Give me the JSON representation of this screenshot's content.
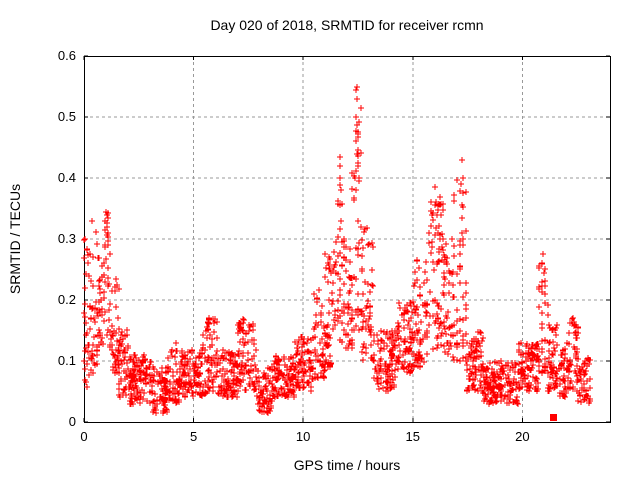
{
  "window": {
    "background": "#ffffff"
  },
  "chart_data": {
    "type": "scatter",
    "title": "Day 020 of 2018, SRMTID for receiver rcmn",
    "xlabel": "GPS time / hours",
    "ylabel": "SRMTID / TECUs",
    "xlim": [
      0,
      24
    ],
    "ylim": [
      0,
      0.6
    ],
    "xticks": {
      "values": [
        0,
        5,
        10,
        15,
        20
      ],
      "labels": [
        "0",
        "5",
        "10",
        "15",
        "20"
      ]
    },
    "yticks": {
      "values": [
        0,
        0.1,
        0.2,
        0.3,
        0.4,
        0.5,
        0.6
      ],
      "labels": [
        "0",
        "0.1",
        "0.2",
        "0.3",
        "0.4",
        "0.5",
        "0.6"
      ]
    },
    "grid": true,
    "legend": false,
    "colors": {
      "marker": "#ff0000",
      "grid": "#999999",
      "border": "#000000",
      "text": "#000000"
    },
    "marker": {
      "shape": "plus",
      "size": 7
    },
    "special_point": {
      "x": 21.4,
      "y": 0.008,
      "shape": "filled-square",
      "size": 7,
      "color": "#ff0000"
    },
    "seed": 20180120,
    "note": "Dense unlabeled scatter (~2200 red '+' samples over 0-23.1 h). density_bands encode the envelope read from the plot as [start_hour, end_hour, ymin_TECU, ymax_TECU, count, low_bias, columns?]; peak_points are the visible extreme samples.",
    "density_bands": [
      [
        0.0,
        0.25,
        0.05,
        0.3,
        28,
        1.2
      ],
      [
        0.25,
        0.6,
        0.08,
        0.32,
        34,
        1.4
      ],
      [
        0.6,
        0.95,
        0.1,
        0.28,
        34,
        1.2
      ],
      [
        0.95,
        1.2,
        0.12,
        0.35,
        26,
        1.1
      ],
      [
        1.2,
        1.6,
        0.08,
        0.24,
        40,
        1.4
      ],
      [
        1.6,
        2.1,
        0.04,
        0.16,
        50,
        1.2
      ],
      [
        2.1,
        3.1,
        0.03,
        0.11,
        100,
        1.1
      ],
      [
        3.1,
        3.8,
        0.015,
        0.09,
        68,
        1.0
      ],
      [
        3.8,
        4.6,
        0.03,
        0.12,
        78,
        1.2
      ],
      [
        4.6,
        5.4,
        0.04,
        0.12,
        78,
        1.1
      ],
      [
        5.4,
        6.1,
        0.045,
        0.17,
        68,
        1.3
      ],
      [
        6.1,
        7.0,
        0.04,
        0.12,
        88,
        1.1
      ],
      [
        7.0,
        7.9,
        0.05,
        0.17,
        88,
        1.3
      ],
      [
        7.9,
        8.6,
        0.015,
        0.09,
        68,
        1.0
      ],
      [
        8.6,
        9.6,
        0.04,
        0.11,
        98,
        1.1
      ],
      [
        9.6,
        10.4,
        0.05,
        0.14,
        78,
        1.1
      ],
      [
        10.4,
        11.0,
        0.07,
        0.22,
        58,
        1.4
      ],
      [
        11.0,
        11.5,
        0.09,
        0.28,
        48,
        1.4
      ],
      [
        11.5,
        11.95,
        0.12,
        0.42,
        44,
        1.6,
        5
      ],
      [
        11.95,
        12.25,
        0.12,
        0.3,
        28,
        1.3
      ],
      [
        12.25,
        12.65,
        0.15,
        0.52,
        38,
        1.6,
        5
      ],
      [
        12.65,
        13.2,
        0.1,
        0.32,
        52,
        1.5
      ],
      [
        13.2,
        14.2,
        0.05,
        0.15,
        98,
        1.1
      ],
      [
        14.2,
        15.0,
        0.08,
        0.2,
        78,
        1.2
      ],
      [
        15.0,
        15.7,
        0.09,
        0.27,
        68,
        1.3
      ],
      [
        15.7,
        16.4,
        0.12,
        0.37,
        68,
        1.2
      ],
      [
        16.4,
        16.9,
        0.1,
        0.3,
        48,
        1.2
      ],
      [
        16.9,
        17.45,
        0.1,
        0.4,
        46,
        1.6,
        4
      ],
      [
        17.45,
        18.2,
        0.05,
        0.15,
        72,
        1.3
      ],
      [
        18.2,
        19.8,
        0.03,
        0.1,
        155,
        1.1
      ],
      [
        19.8,
        20.75,
        0.05,
        0.13,
        92,
        1.1
      ],
      [
        20.75,
        21.15,
        0.08,
        0.26,
        38,
        1.4,
        3
      ],
      [
        21.15,
        21.7,
        0.05,
        0.16,
        52,
        1.2
      ],
      [
        21.7,
        22.1,
        0.04,
        0.13,
        38,
        1.1
      ],
      [
        22.1,
        22.55,
        0.05,
        0.17,
        44,
        1.3
      ],
      [
        22.55,
        23.1,
        0.03,
        0.105,
        48,
        1.2
      ]
    ],
    "peak_points": [
      [
        0.03,
        0.3
      ],
      [
        0.37,
        0.33
      ],
      [
        0.98,
        0.33
      ],
      [
        1.0,
        0.345
      ],
      [
        1.06,
        0.34
      ],
      [
        4.2,
        0.13
      ],
      [
        11.66,
        0.435
      ],
      [
        11.7,
        0.42
      ],
      [
        11.68,
        0.4
      ],
      [
        11.72,
        0.38
      ],
      [
        11.69,
        0.355
      ],
      [
        11.71,
        0.33
      ],
      [
        12.43,
        0.545
      ],
      [
        12.47,
        0.55
      ],
      [
        12.45,
        0.53
      ],
      [
        12.4,
        0.5
      ],
      [
        12.46,
        0.487
      ],
      [
        12.5,
        0.467
      ],
      [
        12.44,
        0.44
      ],
      [
        12.52,
        0.42
      ],
      [
        12.38,
        0.4
      ],
      [
        16.03,
        0.385
      ],
      [
        16.08,
        0.36
      ],
      [
        17.25,
        0.43
      ],
      [
        17.22,
        0.39
      ],
      [
        17.28,
        0.375
      ],
      [
        17.24,
        0.355
      ],
      [
        17.26,
        0.335
      ],
      [
        17.23,
        0.31
      ],
      [
        17.27,
        0.29
      ],
      [
        20.95,
        0.275
      ],
      [
        20.92,
        0.26
      ],
      [
        20.97,
        0.245
      ],
      [
        20.9,
        0.23
      ],
      [
        22.33,
        0.17
      ],
      [
        22.38,
        0.16
      ]
    ]
  }
}
